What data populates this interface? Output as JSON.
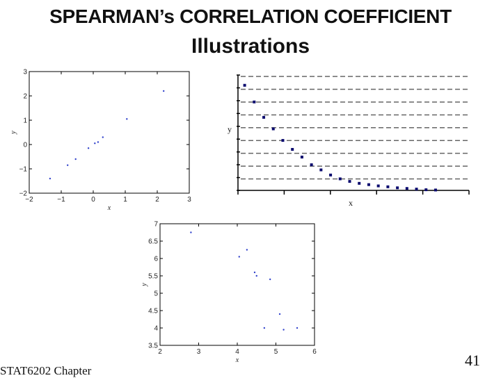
{
  "slide": {
    "title_line1": "SPEARMAN’s CORRELATION COEFFICIENT",
    "title_line2": "Illustrations",
    "footer": "STAT6202 Chapter",
    "page_number": "41"
  },
  "chart_data": [
    {
      "type": "scatter",
      "xlabel": "x",
      "ylabel": "y",
      "xlim": [
        -2,
        3
      ],
      "ylim": [
        -2,
        3
      ],
      "xticks": [
        "−2",
        "−1",
        "0",
        "1",
        "2",
        "3"
      ],
      "yticks": [
        "−2",
        "−1",
        "0",
        "1",
        "2",
        "3"
      ],
      "x": [
        -1.35,
        -0.8,
        -0.55,
        -0.15,
        0.05,
        0.15,
        0.3,
        1.05,
        2.2
      ],
      "y": [
        -1.4,
        -0.85,
        -0.6,
        -0.15,
        0.05,
        0.1,
        0.3,
        1.05,
        2.2
      ],
      "color": "#3344cc"
    },
    {
      "type": "scatter",
      "xlabel": "x",
      "ylabel": "y",
      "grid": true,
      "color": "#0a0a6e",
      "x": [
        1,
        2,
        3,
        4,
        5,
        6,
        7,
        8,
        9,
        10,
        11,
        12,
        13,
        14,
        15,
        16,
        17,
        18,
        19,
        20,
        21
      ],
      "y": [
        8.2,
        6.9,
        5.7,
        4.8,
        3.9,
        3.2,
        2.6,
        2.0,
        1.6,
        1.2,
        0.9,
        0.7,
        0.55,
        0.45,
        0.35,
        0.28,
        0.2,
        0.15,
        0.1,
        0.05,
        0.03
      ]
    },
    {
      "type": "scatter",
      "xlabel": "x",
      "ylabel": "y",
      "xlim": [
        2,
        6
      ],
      "ylim": [
        3.5,
        7
      ],
      "xticks": [
        "2",
        "3",
        "4",
        "5",
        "6"
      ],
      "yticks": [
        "3.5",
        "4",
        "4.5",
        "5",
        "5.5",
        "6",
        "6.5",
        "7"
      ],
      "x": [
        2.8,
        4.05,
        4.25,
        4.45,
        4.5,
        4.7,
        4.85,
        5.1,
        5.2,
        5.55
      ],
      "y": [
        6.75,
        6.05,
        6.25,
        5.6,
        5.5,
        4.0,
        5.4,
        4.4,
        3.95,
        4.0
      ],
      "color": "#3344cc"
    }
  ]
}
